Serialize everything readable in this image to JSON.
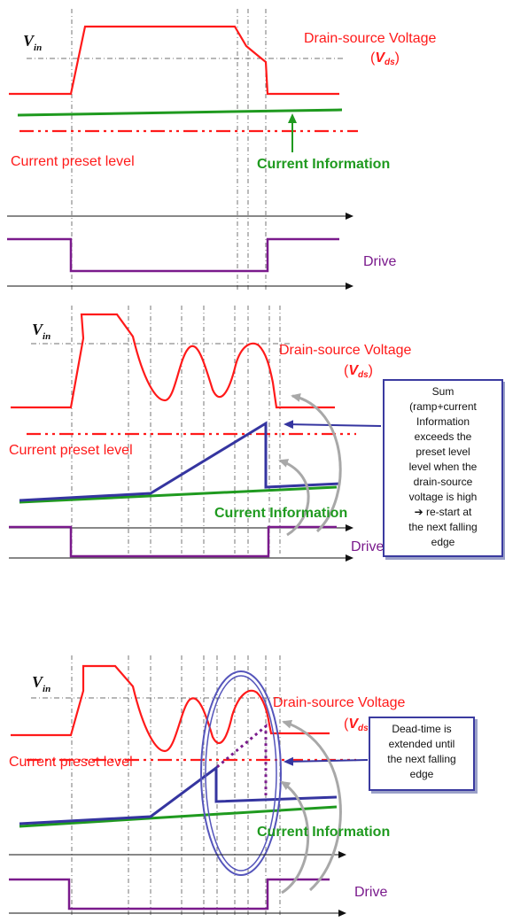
{
  "labels": {
    "vin": "V",
    "vin_sub": "in",
    "vds_title": "Drain-source Voltage",
    "vds_symbol": "V",
    "vds_sub": "ds",
    "current_preset_level": "Current preset level",
    "current_information": "Current Information",
    "drive": "Drive"
  },
  "notes": {
    "sum_note": [
      "Sum",
      "(ramp+current",
      "Information",
      "exceeds the",
      "preset level",
      "level when the",
      "drain-source",
      "voltage is high",
      "➔ re-start at",
      "the next falling",
      "edge"
    ],
    "deadtime_note": [
      "Dead-time is",
      "extended until",
      "the next falling",
      "edge"
    ]
  },
  "colors": {
    "voltage": "#ff1a1a",
    "current": "#1f9a1f",
    "ramp": "#3535a0",
    "drive": "#7a1a8c",
    "axis": "#111111",
    "guide": "#555555",
    "callout_arrow": "#a8a8a8"
  }
}
